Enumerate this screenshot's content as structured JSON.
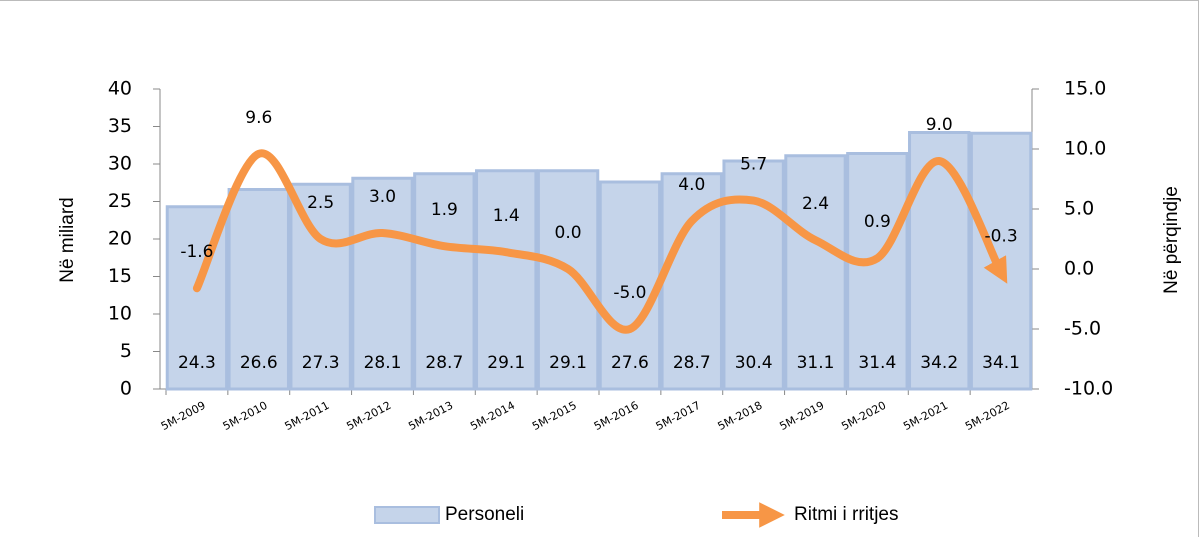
{
  "chart_data": {
    "type": "bar-line",
    "categories": [
      "5M-2009",
      "5M-2010",
      "5M-2011",
      "5M-2012",
      "5M-2013",
      "5M-2014",
      "5M-2015",
      "5M-2016",
      "5M-2017",
      "5M-2018",
      "5M-2019",
      "5M-2020",
      "5M-2021",
      "5M-2022"
    ],
    "y_label": "Në miliard",
    "y2_label": "Në përqindje",
    "ylim": [
      0,
      40
    ],
    "yticks": [
      0,
      5,
      10,
      15,
      20,
      25,
      30,
      35,
      40
    ],
    "y2lim": [
      -10,
      15
    ],
    "y2ticks": [
      {
        "value": -10,
        "label": "-10.0"
      },
      {
        "value": -5,
        "label": "-5.0"
      },
      {
        "value": 0,
        "label": "0.0"
      },
      {
        "value": 5,
        "label": "5.0"
      },
      {
        "value": 10,
        "label": "10.0"
      },
      {
        "value": 15,
        "label": "15.0"
      }
    ],
    "legend": "bottom",
    "series": [
      {
        "name": "Personeli",
        "kind": "bar",
        "color": "#c5d4ea",
        "values": [
          24.3,
          26.6,
          27.3,
          28.1,
          28.7,
          29.1,
          29.1,
          27.6,
          28.7,
          30.4,
          31.1,
          31.4,
          34.2,
          34.1
        ]
      },
      {
        "name": "Ritmi i rritjes",
        "kind": "line",
        "axis": "y2",
        "color": "#f79646",
        "values": [
          -1.6,
          9.6,
          2.5,
          3.0,
          1.9,
          1.4,
          0.0,
          -5.0,
          4.0,
          5.7,
          2.4,
          0.9,
          9.0,
          -0.3
        ],
        "value_labels": [
          "-1.6",
          "9.6",
          "2.5",
          "3.0",
          "1.9",
          "1.4",
          "0.0",
          "-5.0",
          "4.0",
          "5.7",
          "2.4",
          "0.9",
          "9.0",
          "-0.3"
        ]
      }
    ]
  }
}
